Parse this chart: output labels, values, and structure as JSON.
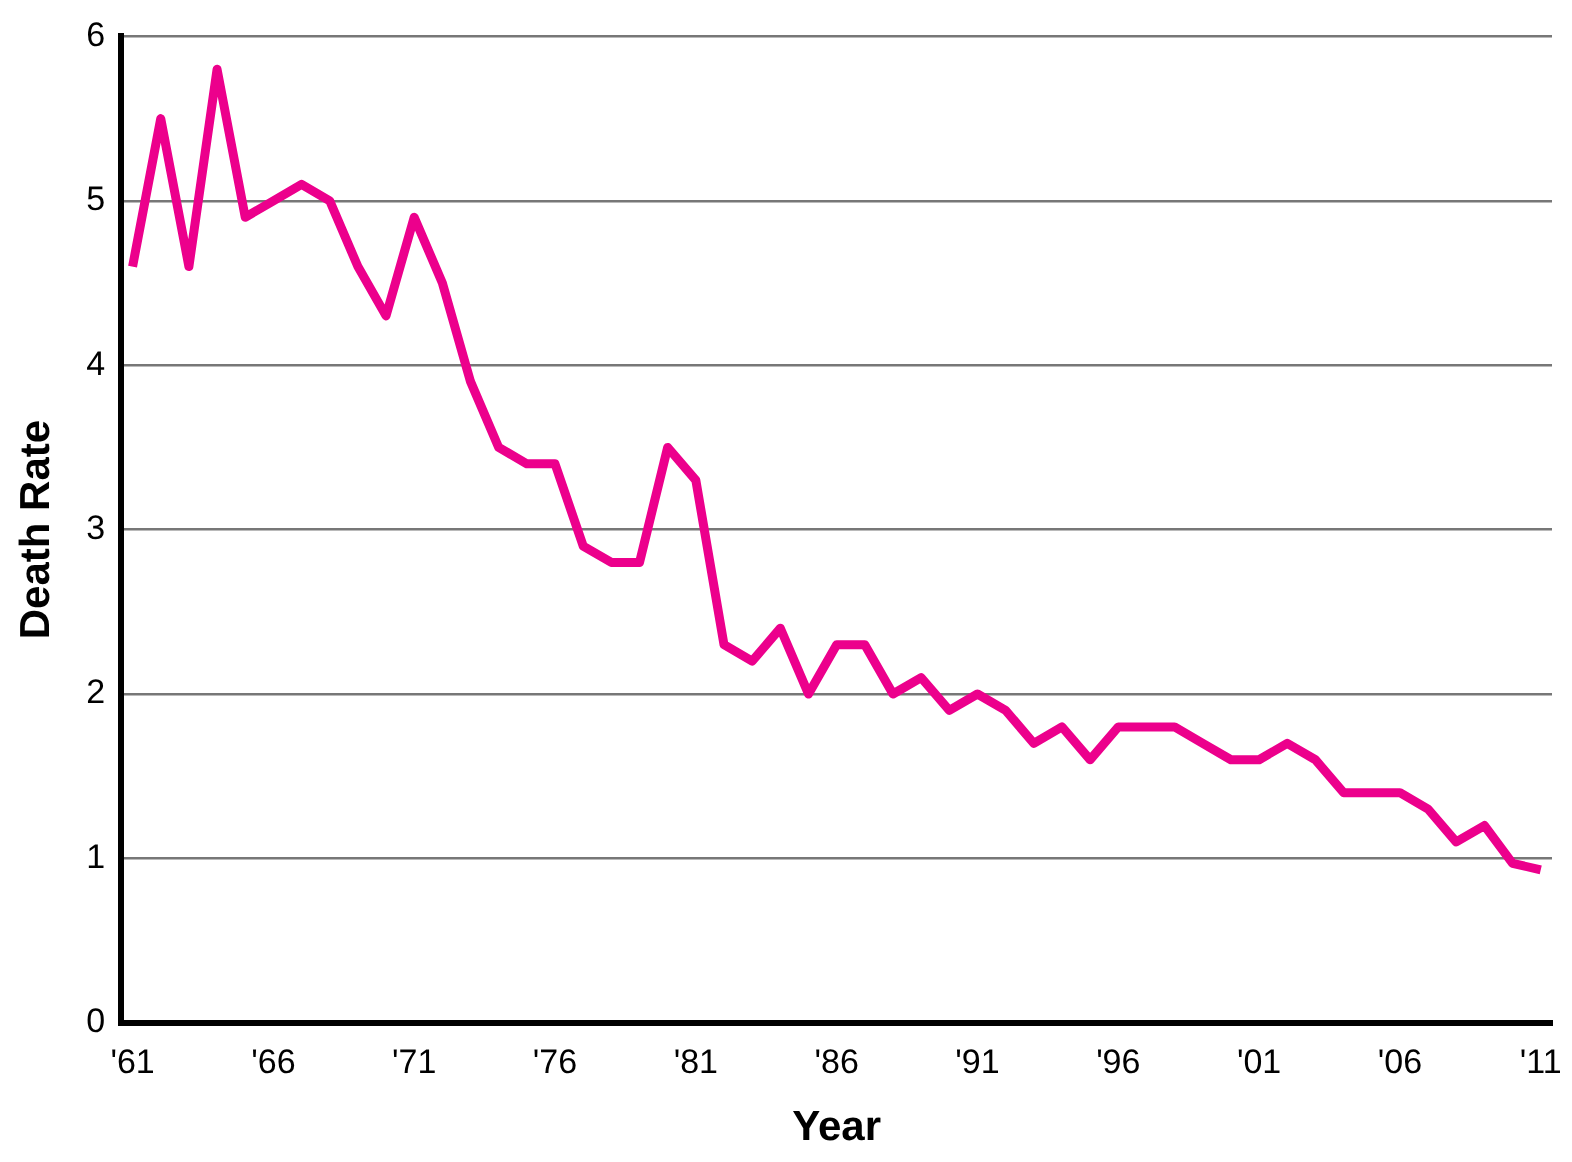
{
  "chart_data": {
    "type": "line",
    "xlabel": "Year",
    "ylabel": "Death Rate",
    "x": [
      1961,
      1962,
      1963,
      1964,
      1965,
      1966,
      1967,
      1968,
      1969,
      1970,
      1971,
      1972,
      1973,
      1974,
      1975,
      1976,
      1977,
      1978,
      1979,
      1980,
      1981,
      1982,
      1983,
      1984,
      1985,
      1986,
      1987,
      1988,
      1989,
      1990,
      1991,
      1992,
      1993,
      1994,
      1995,
      1996,
      1997,
      1998,
      1999,
      2000,
      2001,
      2002,
      2003,
      2004,
      2005,
      2006,
      2007,
      2008,
      2009,
      2010,
      2011
    ],
    "series": [
      {
        "color": "#ec008c",
        "values": [
          4.6,
          5.5,
          4.6,
          5.8,
          4.9,
          5.0,
          5.1,
          5.0,
          4.6,
          4.3,
          4.9,
          4.5,
          3.9,
          3.5,
          3.4,
          3.4,
          2.9,
          2.8,
          2.8,
          3.5,
          3.3,
          2.3,
          2.2,
          2.4,
          2.0,
          2.3,
          2.3,
          2.0,
          2.1,
          1.9,
          2.0,
          1.9,
          1.7,
          1.8,
          1.6,
          1.8,
          1.8,
          1.8,
          1.7,
          1.6,
          1.6,
          1.7,
          1.6,
          1.4,
          1.4,
          1.4,
          1.3,
          1.1,
          1.2,
          0.97,
          0.93
        ]
      }
    ],
    "xlim": [
      1960.6,
      2011.4
    ],
    "xticks": [
      {
        "value": 1961,
        "label": "'61"
      },
      {
        "value": 1966,
        "label": "'66"
      },
      {
        "value": 1971,
        "label": "'71"
      },
      {
        "value": 1976,
        "label": "'76"
      },
      {
        "value": 1981,
        "label": "'81"
      },
      {
        "value": 1986,
        "label": "'86"
      },
      {
        "value": 1991,
        "label": "'91"
      },
      {
        "value": 1996,
        "label": "'96"
      },
      {
        "value": 2001,
        "label": "'01"
      },
      {
        "value": 2006,
        "label": "'06"
      },
      {
        "value": 2011,
        "label": "'11"
      }
    ],
    "ylim": [
      0,
      6
    ],
    "yticks": [
      0,
      1,
      2,
      3,
      4,
      5,
      6
    ],
    "grid": "y",
    "legend": false,
    "marker": "none",
    "line_style": "solid"
  }
}
